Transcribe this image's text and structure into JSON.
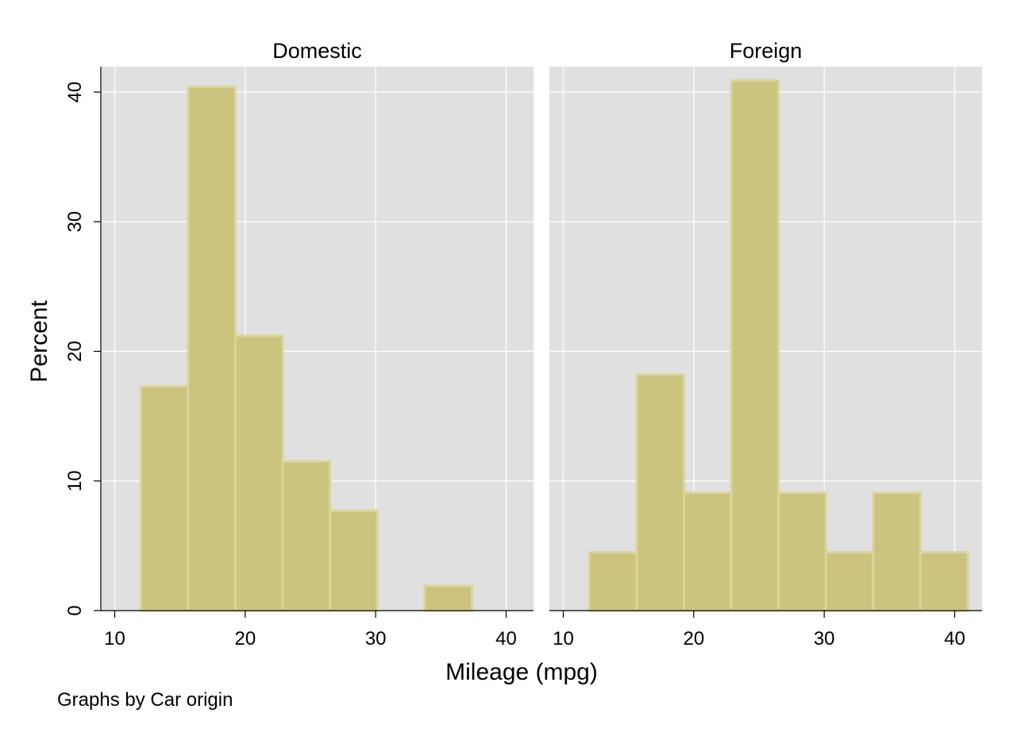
{
  "chart_data": {
    "type": "bar",
    "histogram": true,
    "xlabel": "Mileage (mpg)",
    "ylabel": "Percent",
    "note": "Graphs by Car origin",
    "xlim": [
      10,
      42
    ],
    "ylim": [
      0,
      42
    ],
    "xticks": [
      "10",
      "20",
      "30",
      "40"
    ],
    "yticks": [
      "0",
      "10",
      "20",
      "30",
      "40"
    ],
    "bar_fill": "#cbc37e",
    "bar_edge": "#dcd59a",
    "background": "#e0e0e0",
    "grid": true,
    "bin_edges": [
      12,
      15.625,
      19.25,
      22.875,
      26.5,
      30.125,
      33.75,
      37.375,
      41
    ],
    "panels": [
      {
        "title": "Domestic",
        "values": [
          17.3,
          40.4,
          21.2,
          11.5,
          7.7,
          0,
          1.9,
          0
        ]
      },
      {
        "title": "Foreign",
        "values": [
          4.5,
          18.2,
          9.1,
          40.9,
          9.1,
          4.5,
          9.1,
          4.5
        ]
      }
    ]
  }
}
